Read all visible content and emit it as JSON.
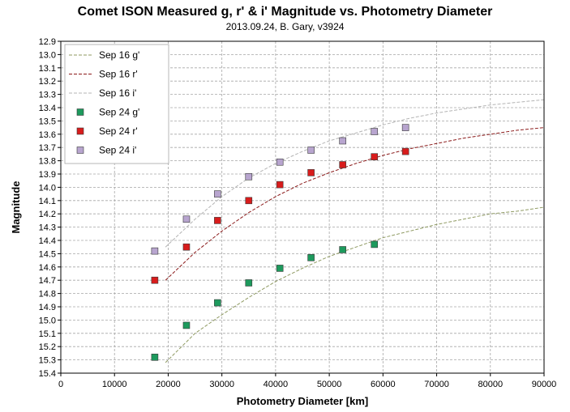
{
  "chart_data": {
    "type": "scatter",
    "title": "Comet ISON Measured g, r' & i' Magnitude vs. Photometry Diameter",
    "subtitle": "2013.09.24,  B. Gary, v3924",
    "xlabel": "Photometry Diameter  [km]",
    "ylabel": "Magnitude",
    "xlim": [
      0,
      90000
    ],
    "ylim": [
      12.9,
      15.4
    ],
    "y_inverted": true,
    "x_ticks": [
      0,
      10000,
      20000,
      30000,
      40000,
      50000,
      60000,
      70000,
      80000,
      90000
    ],
    "y_ticks": [
      12.9,
      13.0,
      13.1,
      13.2,
      13.3,
      13.4,
      13.5,
      13.6,
      13.7,
      13.8,
      13.9,
      14.0,
      14.1,
      14.2,
      14.3,
      14.4,
      14.5,
      14.6,
      14.7,
      14.8,
      14.9,
      15.0,
      15.1,
      15.2,
      15.3,
      15.4
    ],
    "grid": true,
    "legend_position": "top-left",
    "series": [
      {
        "name": "Sep 16 g'",
        "kind": "line",
        "style": "dashed",
        "color": "#8f9a62",
        "x": [
          19500,
          25000,
          30000,
          35000,
          40000,
          45000,
          50000,
          55000,
          60000,
          65000,
          70000,
          75000,
          80000,
          85000,
          90000
        ],
        "y": [
          15.32,
          15.1,
          14.96,
          14.83,
          14.71,
          14.61,
          14.52,
          14.45,
          14.38,
          14.33,
          14.28,
          14.24,
          14.2,
          14.18,
          14.15
        ]
      },
      {
        "name": "Sep 16 r'",
        "kind": "line",
        "style": "dashed",
        "color": "#8b1a1a",
        "x": [
          19500,
          25000,
          30000,
          35000,
          40000,
          45000,
          50000,
          55000,
          60000,
          65000,
          70000,
          75000,
          80000,
          85000,
          90000
        ],
        "y": [
          14.7,
          14.49,
          14.33,
          14.19,
          14.07,
          13.97,
          13.89,
          13.82,
          13.76,
          13.71,
          13.67,
          13.63,
          13.6,
          13.57,
          13.55
        ]
      },
      {
        "name": "Sep 16 i'",
        "kind": "line",
        "style": "dashed",
        "color": "#b4b4b4",
        "x": [
          19500,
          25000,
          30000,
          35000,
          40000,
          45000,
          50000,
          55000,
          60000,
          65000,
          70000,
          75000,
          80000,
          85000,
          90000
        ],
        "y": [
          14.45,
          14.24,
          14.07,
          13.93,
          13.82,
          13.73,
          13.65,
          13.59,
          13.53,
          13.48,
          13.44,
          13.41,
          13.38,
          13.36,
          13.34
        ]
      },
      {
        "name": "Sep 24 g'",
        "kind": "markers",
        "color": "#1d9a5d",
        "x": [
          17500,
          23400,
          29200,
          35000,
          40800,
          46600,
          52500,
          58400
        ],
        "y": [
          15.28,
          15.04,
          14.87,
          14.72,
          14.61,
          14.53,
          14.47,
          14.43
        ]
      },
      {
        "name": "Sep 24 r'",
        "kind": "markers",
        "color": "#d81c1c",
        "x": [
          17500,
          23400,
          29200,
          35000,
          40800,
          46600,
          52500,
          58400,
          64200
        ],
        "y": [
          14.7,
          14.45,
          14.25,
          14.1,
          13.98,
          13.89,
          13.83,
          13.77,
          13.73
        ]
      },
      {
        "name": "Sep 24 i'",
        "kind": "markers",
        "color": "#b8a5cf",
        "x": [
          17500,
          23400,
          29200,
          35000,
          40800,
          46600,
          52500,
          58400,
          64200
        ],
        "y": [
          14.48,
          14.24,
          14.05,
          13.92,
          13.81,
          13.72,
          13.65,
          13.58,
          13.55
        ]
      }
    ]
  }
}
